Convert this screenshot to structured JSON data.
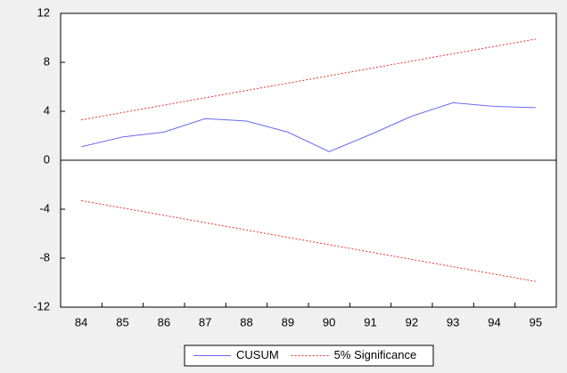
{
  "chart_data": {
    "type": "line",
    "categories": [
      "84",
      "85",
      "86",
      "87",
      "88",
      "89",
      "90",
      "91",
      "92",
      "93",
      "94",
      "95"
    ],
    "series": [
      {
        "name": "CUSUM",
        "color": "#6a6af0",
        "dashed": false,
        "values": [
          1.1,
          1.9,
          2.3,
          3.4,
          3.2,
          2.3,
          0.7,
          2.1,
          3.6,
          4.7,
          4.4,
          4.3
        ]
      },
      {
        "name": "5% Significance",
        "color": "#e83030",
        "dashed": true,
        "values": [
          3.3,
          3.9,
          4.5,
          5.1,
          5.7,
          6.3,
          6.9,
          7.5,
          8.1,
          8.7,
          9.3,
          9.9
        ]
      },
      {
        "color": "#e83030",
        "dashed": true,
        "values": [
          -3.3,
          -3.9,
          -4.5,
          -5.1,
          -5.7,
          -6.3,
          -6.9,
          -7.5,
          -8.1,
          -8.7,
          -9.3,
          -9.9
        ]
      }
    ],
    "ylim": [
      -12,
      12
    ],
    "yticks": [
      -12,
      -8,
      -4,
      0,
      4,
      8,
      12
    ],
    "zero_line": true,
    "legend": "bottom"
  }
}
